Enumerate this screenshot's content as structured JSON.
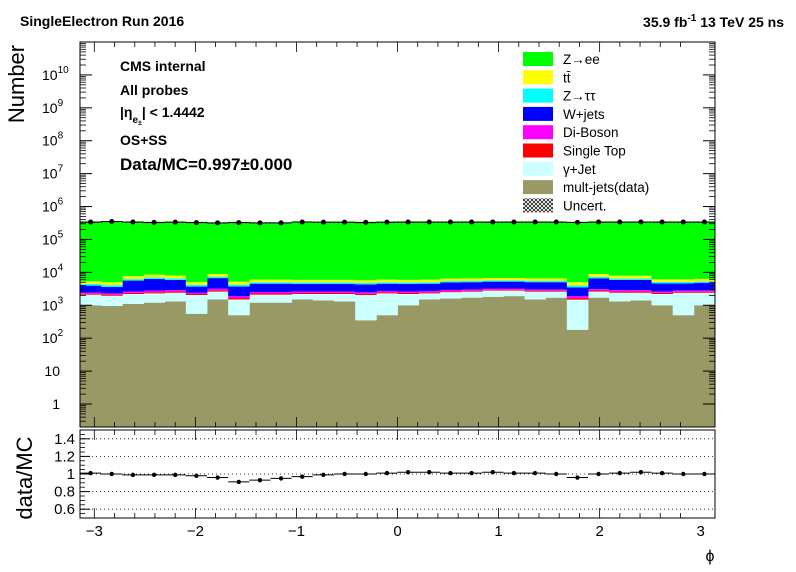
{
  "header": {
    "left": "SingleElectron Run 2016",
    "lumi": "35.9 fb",
    "lumi_exp": "-1",
    "energy": " 13 TeV 25 ns"
  },
  "annotations": {
    "cms": "CMS internal",
    "probes": "All probes",
    "eta_open": "|η",
    "eta_sub": "e",
    "eta_subsub": "±",
    "eta_close": "| < 1.4442",
    "charge": "OS+SS",
    "ratio": "Data/MC=0.997±0.000"
  },
  "colors": {
    "zee": "#00ff00",
    "ttbar": "#ffff00",
    "ztautau": "#00ffff",
    "wjets": "#0000ff",
    "diboson": "#ff00ff",
    "singletop": "#ff0000",
    "gammajet": "#ccffff",
    "multijet": "#999966"
  },
  "chart_data": {
    "type": "bar",
    "stacked": true,
    "xlabel": "ϕ",
    "ylabel": "Number",
    "ylabel_ratio": "data/MC",
    "xlim": [
      -3.14159,
      3.14159
    ],
    "ylim": [
      0.2,
      100000000000
    ],
    "yscale": "log",
    "ratio_ylim": [
      0.5,
      1.5
    ],
    "x_ticks": [
      "−3",
      "−2",
      "−1",
      "0",
      "1",
      "2",
      "3"
    ],
    "y_ticks": [
      "1",
      "10",
      "10",
      "10",
      "10",
      "10",
      "10",
      "10",
      "10",
      "10",
      "10"
    ],
    "y_tick_exps": [
      "",
      "",
      "2",
      "3",
      "4",
      "5",
      "6",
      "7",
      "8",
      "9",
      "10"
    ],
    "ratio_ticks": [
      "0.6",
      "0.8",
      "1",
      "1.2",
      "1.4"
    ],
    "bin_edges": [
      -3.14159,
      -2.93215,
      -2.72271,
      -2.51327,
      -2.30383,
      -2.0944,
      -1.88496,
      -1.67552,
      -1.46608,
      -1.25664,
      -1.0472,
      -0.83776,
      -0.62832,
      -0.41888,
      -0.20944,
      0.0,
      0.20944,
      0.41888,
      0.62832,
      0.83776,
      1.0472,
      1.25664,
      1.46608,
      1.67552,
      1.88496,
      2.0944,
      2.30383,
      2.51327,
      2.72271,
      2.93215,
      3.14159
    ],
    "legend": [
      {
        "key": "zee",
        "label": "Z→ee",
        "style": "fill"
      },
      {
        "key": "ttbar",
        "label": "tt̄",
        "style": "fill"
      },
      {
        "key": "ztautau",
        "label": "Z→ττ",
        "style": "fill"
      },
      {
        "key": "wjets",
        "label": "W+jets",
        "style": "fill"
      },
      {
        "key": "diboson",
        "label": "Di-Boson",
        "style": "fill"
      },
      {
        "key": "singletop",
        "label": "Single Top",
        "style": "fill"
      },
      {
        "key": "gammajet",
        "label": "γ+Jet",
        "style": "fill"
      },
      {
        "key": "multijet",
        "label": "mult-jets(data)",
        "style": "fill"
      },
      {
        "key": "uncert",
        "label": "Uncert.",
        "style": "hatch"
      }
    ],
    "series": [
      {
        "key": "multijet",
        "values": [
          1000,
          950,
          1100,
          1200,
          1300,
          550,
          1500,
          500,
          1200,
          1200,
          1500,
          1400,
          1300,
          350,
          500,
          1000,
          1500,
          1600,
          1700,
          1800,
          1900,
          1500,
          1700,
          180,
          1700,
          1300,
          1400,
          1000,
          500,
          1000
        ]
      },
      {
        "key": "gammajet",
        "values": [
          1100,
          1000,
          1100,
          1100,
          1100,
          1500,
          1100,
          1000,
          900,
          900,
          700,
          800,
          900,
          1700,
          1800,
          1200,
          800,
          900,
          900,
          1000,
          900,
          1100,
          900,
          1300,
          900,
          1100,
          1000,
          1200,
          1900,
          1400
        ]
      },
      {
        "key": "singletop",
        "values": [
          150,
          150,
          180,
          200,
          200,
          150,
          250,
          160,
          180,
          180,
          170,
          170,
          170,
          170,
          170,
          170,
          170,
          180,
          180,
          180,
          180,
          180,
          180,
          170,
          200,
          200,
          200,
          180,
          180,
          180
        ]
      },
      {
        "key": "diboson",
        "values": [
          200,
          200,
          250,
          300,
          300,
          200,
          350,
          250,
          250,
          250,
          250,
          250,
          250,
          250,
          250,
          250,
          250,
          250,
          250,
          250,
          250,
          250,
          250,
          250,
          300,
          300,
          300,
          250,
          250,
          250
        ]
      },
      {
        "key": "wjets",
        "values": [
          1500,
          1300,
          3000,
          3500,
          3000,
          1300,
          3500,
          1800,
          2000,
          2000,
          1800,
          1800,
          1800,
          1800,
          1800,
          1800,
          1800,
          2000,
          2000,
          2000,
          2000,
          2000,
          2000,
          1600,
          3500,
          3000,
          3000,
          2000,
          1800,
          2000
        ]
      },
      {
        "key": "ztautau",
        "values": [
          500,
          500,
          600,
          700,
          700,
          500,
          700,
          500,
          500,
          500,
          500,
          500,
          500,
          500,
          500,
          500,
          500,
          500,
          500,
          500,
          500,
          500,
          500,
          500,
          700,
          600,
          600,
          500,
          500,
          500
        ]
      },
      {
        "key": "ttbar",
        "values": [
          900,
          900,
          1400,
          1500,
          1400,
          900,
          1500,
          1000,
          1000,
          1000,
          1000,
          1000,
          1000,
          1000,
          1000,
          1000,
          1000,
          1000,
          1000,
          1000,
          1000,
          1000,
          1000,
          1000,
          1600,
          1400,
          1400,
          1000,
          1000,
          1000
        ]
      },
      {
        "key": "zee",
        "values": [
          330000,
          345000,
          330000,
          320000,
          330000,
          330000,
          310000,
          330000,
          320000,
          320000,
          340000,
          330000,
          330000,
          320000,
          330000,
          330000,
          330000,
          330000,
          330000,
          330000,
          330000,
          330000,
          330000,
          330000,
          330000,
          330000,
          330000,
          330000,
          330000,
          330000
        ]
      }
    ],
    "data_points": [
      340000,
      350000,
      340000,
      330000,
      335000,
      325000,
      320000,
      325000,
      320000,
      320000,
      340000,
      335000,
      335000,
      330000,
      335000,
      340000,
      340000,
      340000,
      340000,
      340000,
      340000,
      340000,
      340000,
      330000,
      340000,
      340000,
      340000,
      340000,
      340000,
      340000
    ],
    "ratio_points": [
      1.01,
      1.0,
      0.99,
      0.99,
      0.99,
      0.98,
      0.96,
      0.91,
      0.93,
      0.95,
      0.97,
      0.99,
      1.0,
      1.0,
      1.01,
      1.02,
      1.02,
      1.01,
      1.01,
      1.02,
      1.01,
      1.01,
      1.0,
      0.96,
      1.0,
      1.01,
      1.02,
      1.01,
      1.0,
      1.0
    ]
  }
}
